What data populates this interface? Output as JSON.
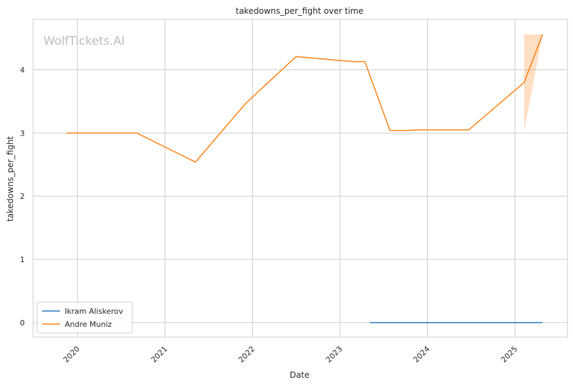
{
  "chart_data": {
    "type": "line",
    "title": "takedowns_per_fight over time",
    "xlabel": "Date",
    "ylabel": "takedowns_per_fight",
    "watermark": "WolfTickets.AI",
    "x_ticks": [
      "2020",
      "2021",
      "2022",
      "2023",
      "2024",
      "2025"
    ],
    "y_ticks": [
      0,
      1,
      2,
      3,
      4
    ],
    "xlim": [
      "2019-06-30",
      "2025-08-08"
    ],
    "ylim": [
      -0.23,
      4.8
    ],
    "grid": true,
    "legend_position": "lower left",
    "series": [
      {
        "name": "Ikram Aliskerov",
        "color": "#1f77b4",
        "points": [
          [
            "2023-05-06",
            0
          ],
          [
            "2025-04-25",
            0
          ]
        ]
      },
      {
        "name": "Andre Muniz",
        "color": "#ff7f0e",
        "points": [
          [
            "2019-11-16",
            3.0
          ],
          [
            "2020-09-05",
            3.0
          ],
          [
            "2021-05-08",
            2.54
          ],
          [
            "2021-12-04",
            3.47
          ],
          [
            "2022-07-02",
            4.21
          ],
          [
            "2023-02-25",
            4.13
          ],
          [
            "2023-04-15",
            4.13
          ],
          [
            "2023-07-29",
            3.04
          ],
          [
            "2023-10-07",
            3.04
          ],
          [
            "2023-11-25",
            3.05
          ],
          [
            "2024-06-22",
            3.05
          ],
          [
            "2025-02-08",
            3.8
          ],
          [
            "2025-04-26",
            4.56
          ]
        ],
        "band": {
          "x": [
            "2025-02-08",
            "2025-04-26"
          ],
          "lower": [
            3.03,
            4.56
          ],
          "upper": [
            4.56,
            4.56
          ]
        }
      }
    ]
  }
}
